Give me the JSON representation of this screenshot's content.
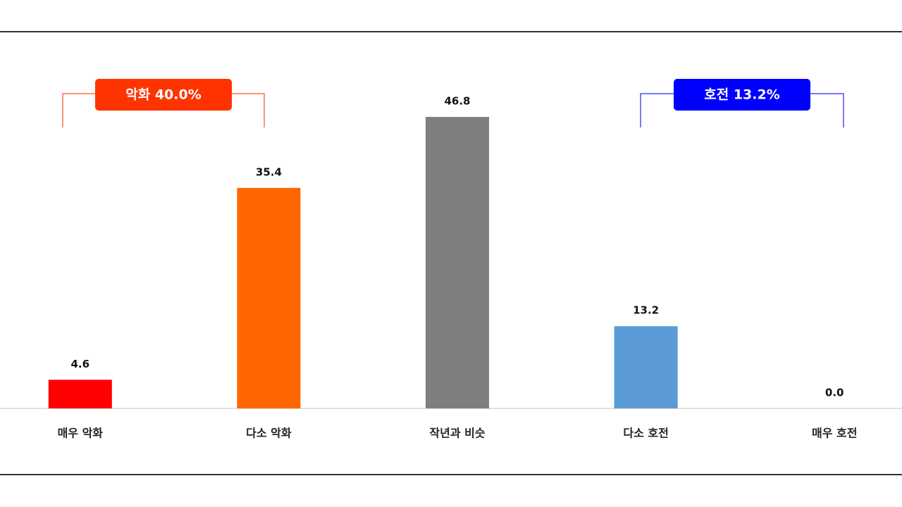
{
  "chart_data": {
    "type": "bar",
    "categories": [
      "매우 악화",
      "다소 악화",
      "작년과 비슷",
      "다소 호전",
      "매우 호전"
    ],
    "values": [
      4.6,
      35.4,
      46.8,
      13.2,
      0.0
    ],
    "value_labels": [
      "4.6",
      "35.4",
      "46.8",
      "13.2",
      "0.0"
    ],
    "colors": [
      "#ff0000",
      "#ff6600",
      "#7f7f7f",
      "#5b9bd5",
      "#1f4e9c"
    ],
    "ylim": [
      0,
      50
    ],
    "annotations": [
      {
        "text": "악화 40.0%",
        "color": "#ff3300"
      },
      {
        "text": "호전 13.2%",
        "color": "#0000ff"
      }
    ]
  }
}
